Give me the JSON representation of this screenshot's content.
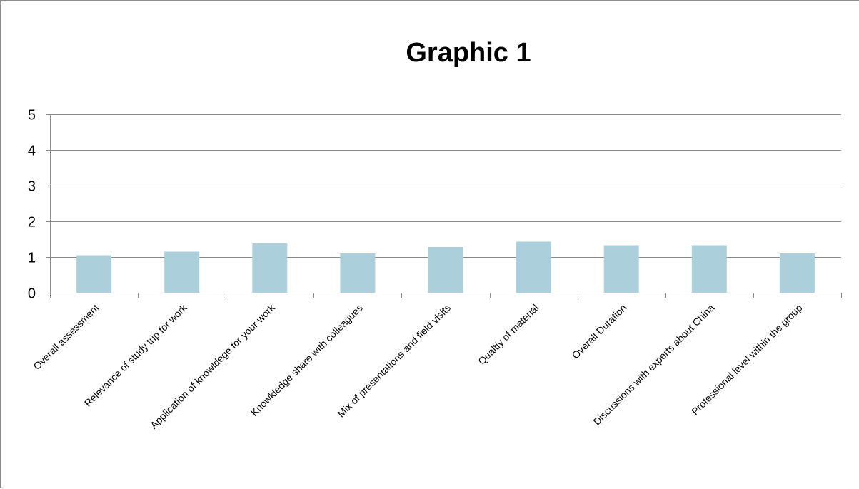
{
  "chart_data": {
    "type": "bar",
    "title": "Graphic 1",
    "xlabel": "",
    "ylabel": "",
    "ylim": [
      0,
      5
    ],
    "yticks": [
      0,
      1,
      2,
      3,
      4,
      5
    ],
    "grid": true,
    "legend": "none",
    "bar_color": "#abd0dc",
    "categories": [
      "Overall assessment",
      "Relevance of study trip for work",
      "Application of knowldege for your work",
      "Knowkledge share with colleagues",
      "Mix of presentations and field visits",
      "Qualtiy of material",
      "Overall Duration",
      "Discussions with experts about China",
      "Professional level within the group"
    ],
    "values": [
      1.05,
      1.15,
      1.38,
      1.1,
      1.28,
      1.43,
      1.33,
      1.33,
      1.1
    ]
  }
}
